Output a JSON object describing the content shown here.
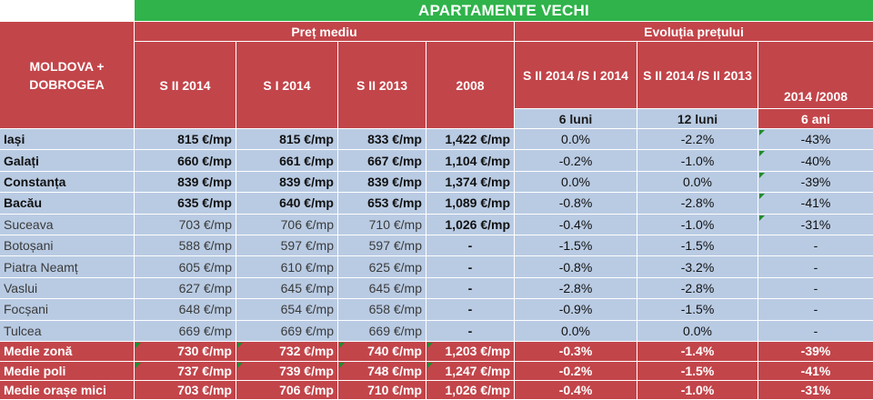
{
  "title": "APARTAMENTE VECHI",
  "region": "MOLDOVA + DOBROGEA",
  "groups": {
    "avg_price": "Preț mediu",
    "price_evolution": "Evoluția prețului"
  },
  "columns": {
    "s2_2014": "S II 2014",
    "s1_2014": "S I 2014",
    "s2_2013": "S II 2013",
    "y2008": "2008",
    "chg_6": "S II 2014 /S I 2014",
    "chg_12": "S II 2014 /S II 2013",
    "chg_ani": "2014 /2008"
  },
  "periods": {
    "p6": "6 luni",
    "p12": "12 luni",
    "p6ani": "6 ani"
  },
  "rows": [
    {
      "city": "Iași",
      "s2_2014": "815 €/mp",
      "s1_2014": "815 €/mp",
      "s2_2013": "833 €/mp",
      "y2008": "1,422 €/mp",
      "chg_6": "0.0%",
      "chg_12": "-2.2%",
      "chg_ani": "-43%"
    },
    {
      "city": "Galați",
      "s2_2014": "660 €/mp",
      "s1_2014": "661 €/mp",
      "s2_2013": "667 €/mp",
      "y2008": "1,104 €/mp",
      "chg_6": "-0.2%",
      "chg_12": "-1.0%",
      "chg_ani": "-40%"
    },
    {
      "city": "Constanța",
      "s2_2014": "839 €/mp",
      "s1_2014": "839 €/mp",
      "s2_2013": "839 €/mp",
      "y2008": "1,374 €/mp",
      "chg_6": "0.0%",
      "chg_12": "0.0%",
      "chg_ani": "-39%"
    },
    {
      "city": "Bacău",
      "s2_2014": "635 €/mp",
      "s1_2014": "640 €/mp",
      "s2_2013": "653 €/mp",
      "y2008": "1,089 €/mp",
      "chg_6": "-0.8%",
      "chg_12": "-2.8%",
      "chg_ani": "-41%"
    },
    {
      "city": "Suceava",
      "s2_2014": "703 €/mp",
      "s1_2014": "706 €/mp",
      "s2_2013": "710 €/mp",
      "y2008": "1,026 €/mp",
      "chg_6": "-0.4%",
      "chg_12": "-1.0%",
      "chg_ani": "-31%"
    },
    {
      "city": "Botoșani",
      "s2_2014": "588 €/mp",
      "s1_2014": "597 €/mp",
      "s2_2013": "597 €/mp",
      "y2008": "-",
      "chg_6": "-1.5%",
      "chg_12": "-1.5%",
      "chg_ani": "-"
    },
    {
      "city": "Piatra Neamț",
      "s2_2014": "605 €/mp",
      "s1_2014": "610 €/mp",
      "s2_2013": "625 €/mp",
      "y2008": "-",
      "chg_6": "-0.8%",
      "chg_12": "-3.2%",
      "chg_ani": "-"
    },
    {
      "city": "Vaslui",
      "s2_2014": "627 €/mp",
      "s1_2014": "645 €/mp",
      "s2_2013": "645 €/mp",
      "y2008": "-",
      "chg_6": "-2.8%",
      "chg_12": "-2.8%",
      "chg_ani": "-"
    },
    {
      "city": "Focșani",
      "s2_2014": "648 €/mp",
      "s1_2014": "654 €/mp",
      "s2_2013": "658 €/mp",
      "y2008": "-",
      "chg_6": "-0.9%",
      "chg_12": "-1.5%",
      "chg_ani": "-"
    },
    {
      "city": "Tulcea",
      "s2_2014": "669 €/mp",
      "s1_2014": "669 €/mp",
      "s2_2013": "669 €/mp",
      "y2008": "-",
      "chg_6": "0.0%",
      "chg_12": "0.0%",
      "chg_ani": "-"
    }
  ],
  "summary": [
    {
      "city": "Medie zonă",
      "s2_2014": "730 €/mp",
      "s1_2014": "732 €/mp",
      "s2_2013": "740 €/mp",
      "y2008": "1,203 €/mp",
      "chg_6": "-0.3%",
      "chg_12": "-1.4%",
      "chg_ani": "-39%"
    },
    {
      "city": "Medie poli",
      "s2_2014": "737 €/mp",
      "s1_2014": "739 €/mp",
      "s2_2013": "748 €/mp",
      "y2008": "1,247 €/mp",
      "chg_6": "-0.2%",
      "chg_12": "-1.5%",
      "chg_ani": "-41%"
    },
    {
      "city": "Medie orașe mici",
      "s2_2014": "703 €/mp",
      "s1_2014": "706 €/mp",
      "s2_2013": "710 €/mp",
      "y2008": "1,026 €/mp",
      "chg_6": "-0.4%",
      "chg_12": "-1.0%",
      "chg_ani": "-31%"
    }
  ],
  "colors": {
    "title_bg": "#2fb34a",
    "header_bg": "#c2454a",
    "row_bg": "#b9cbe3",
    "marker": "#1f8c2c"
  }
}
